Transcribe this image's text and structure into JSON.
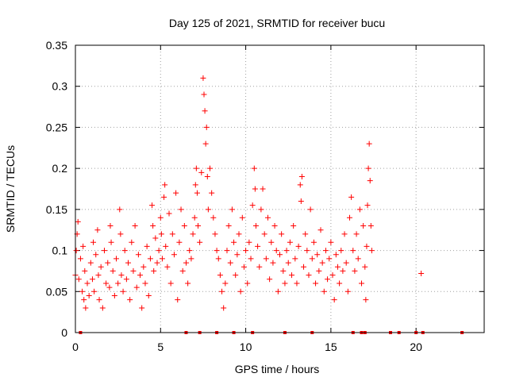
{
  "chart_data": {
    "type": "scatter",
    "title": "Day 125 of 2021, SRMTID for receiver bucu",
    "xlabel": "GPS time / hours",
    "ylabel": "SRMTID / TECUs",
    "xlim": [
      0,
      24
    ],
    "ylim": [
      0,
      0.35
    ],
    "xticks": [
      0,
      5,
      10,
      15,
      20
    ],
    "xtick_labels": [
      "0",
      "5",
      "10",
      "15",
      "20"
    ],
    "yticks": [
      0,
      0.05,
      0.1,
      0.15,
      0.2,
      0.25,
      0.3,
      0.35
    ],
    "ytick_labels": [
      "0",
      "0.05",
      "0.1",
      "0.15",
      "0.2",
      "0.25",
      "0.3",
      "0.35"
    ],
    "grid": true,
    "marker": "+",
    "color": "#ff0000",
    "series": [
      {
        "name": "SRMTID",
        "points": [
          [
            0.0,
            0.07
          ],
          [
            0.05,
            0.1
          ],
          [
            0.1,
            0.12
          ],
          [
            0.15,
            0.135
          ],
          [
            0.2,
            0.065
          ],
          [
            0.3,
            0.09
          ],
          [
            0.4,
            0.05
          ],
          [
            0.45,
            0.105
          ],
          [
            0.5,
            0.04
          ],
          [
            0.55,
            0.075
          ],
          [
            0.6,
            0.03
          ],
          [
            0.7,
            0.06
          ],
          [
            0.8,
            0.045
          ],
          [
            0.9,
            0.085
          ],
          [
            1.0,
            0.065
          ],
          [
            1.05,
            0.11
          ],
          [
            1.1,
            0.05
          ],
          [
            1.2,
            0.095
          ],
          [
            1.3,
            0.125
          ],
          [
            1.35,
            0.07
          ],
          [
            1.4,
            0.04
          ],
          [
            1.5,
            0.08
          ],
          [
            1.6,
            0.03
          ],
          [
            1.7,
            0.1
          ],
          [
            1.8,
            0.06
          ],
          [
            1.9,
            0.085
          ],
          [
            2.0,
            0.055
          ],
          [
            2.05,
            0.13
          ],
          [
            2.1,
            0.11
          ],
          [
            2.2,
            0.075
          ],
          [
            2.3,
            0.045
          ],
          [
            2.4,
            0.09
          ],
          [
            2.5,
            0.06
          ],
          [
            2.6,
            0.15
          ],
          [
            2.65,
            0.12
          ],
          [
            2.7,
            0.07
          ],
          [
            2.8,
            0.05
          ],
          [
            2.9,
            0.1
          ],
          [
            3.0,
            0.065
          ],
          [
            3.1,
            0.085
          ],
          [
            3.2,
            0.04
          ],
          [
            3.3,
            0.11
          ],
          [
            3.4,
            0.075
          ],
          [
            3.5,
            0.13
          ],
          [
            3.6,
            0.055
          ],
          [
            3.7,
            0.095
          ],
          [
            3.8,
            0.07
          ],
          [
            3.9,
            0.03
          ],
          [
            4.0,
            0.08
          ],
          [
            4.1,
            0.06
          ],
          [
            4.2,
            0.105
          ],
          [
            4.3,
            0.045
          ],
          [
            4.4,
            0.09
          ],
          [
            4.5,
            0.155
          ],
          [
            4.55,
            0.13
          ],
          [
            4.6,
            0.075
          ],
          [
            4.7,
            0.115
          ],
          [
            4.8,
            0.085
          ],
          [
            4.9,
            0.1
          ],
          [
            5.0,
            0.14
          ],
          [
            5.05,
            0.12
          ],
          [
            5.1,
            0.09
          ],
          [
            5.2,
            0.165
          ],
          [
            5.25,
            0.18
          ],
          [
            5.3,
            0.105
          ],
          [
            5.4,
            0.08
          ],
          [
            5.5,
            0.145
          ],
          [
            5.6,
            0.06
          ],
          [
            5.7,
            0.12
          ],
          [
            5.8,
            0.095
          ],
          [
            5.9,
            0.17
          ],
          [
            6.0,
            0.04
          ],
          [
            6.1,
            0.11
          ],
          [
            6.2,
            0.15
          ],
          [
            6.3,
            0.075
          ],
          [
            6.4,
            0.13
          ],
          [
            6.5,
            0.085
          ],
          [
            6.6,
            0.06
          ],
          [
            6.7,
            0.1
          ],
          [
            6.8,
            0.09
          ],
          [
            6.9,
            0.12
          ],
          [
            7.0,
            0.14
          ],
          [
            7.05,
            0.18
          ],
          [
            7.1,
            0.2
          ],
          [
            7.15,
            0.17
          ],
          [
            7.2,
            0.13
          ],
          [
            7.3,
            0.11
          ],
          [
            7.4,
            0.195
          ],
          [
            7.5,
            0.31
          ],
          [
            7.55,
            0.29
          ],
          [
            7.6,
            0.27
          ],
          [
            7.65,
            0.23
          ],
          [
            7.7,
            0.25
          ],
          [
            7.75,
            0.19
          ],
          [
            7.8,
            0.15
          ],
          [
            7.9,
            0.2
          ],
          [
            8.0,
            0.17
          ],
          [
            8.1,
            0.14
          ],
          [
            8.2,
            0.12
          ],
          [
            8.3,
            0.1
          ],
          [
            8.4,
            0.09
          ],
          [
            8.5,
            0.07
          ],
          [
            8.6,
            0.05
          ],
          [
            8.7,
            0.03
          ],
          [
            8.8,
            0.06
          ],
          [
            8.9,
            0.1
          ],
          [
            9.0,
            0.13
          ],
          [
            9.1,
            0.085
          ],
          [
            9.2,
            0.15
          ],
          [
            9.3,
            0.11
          ],
          [
            9.4,
            0.07
          ],
          [
            9.5,
            0.095
          ],
          [
            9.6,
            0.12
          ],
          [
            9.7,
            0.05
          ],
          [
            9.8,
            0.14
          ],
          [
            9.9,
            0.08
          ],
          [
            10.0,
            0.1
          ],
          [
            10.1,
            0.06
          ],
          [
            10.2,
            0.11
          ],
          [
            10.3,
            0.09
          ],
          [
            10.4,
            0.155
          ],
          [
            10.5,
            0.2
          ],
          [
            10.55,
            0.175
          ],
          [
            10.6,
            0.13
          ],
          [
            10.7,
            0.105
          ],
          [
            10.8,
            0.08
          ],
          [
            10.9,
            0.15
          ],
          [
            11.0,
            0.175
          ],
          [
            11.1,
            0.12
          ],
          [
            11.2,
            0.09
          ],
          [
            11.3,
            0.14
          ],
          [
            11.4,
            0.065
          ],
          [
            11.5,
            0.11
          ],
          [
            11.6,
            0.085
          ],
          [
            11.7,
            0.13
          ],
          [
            11.8,
            0.1
          ],
          [
            11.9,
            0.05
          ],
          [
            12.0,
            0.095
          ],
          [
            12.1,
            0.12
          ],
          [
            12.2,
            0.075
          ],
          [
            12.3,
            0.06
          ],
          [
            12.4,
            0.1
          ],
          [
            12.5,
            0.085
          ],
          [
            12.6,
            0.11
          ],
          [
            12.7,
            0.07
          ],
          [
            12.8,
            0.13
          ],
          [
            12.9,
            0.09
          ],
          [
            13.0,
            0.06
          ],
          [
            13.1,
            0.105
          ],
          [
            13.2,
            0.18
          ],
          [
            13.25,
            0.16
          ],
          [
            13.3,
            0.19
          ],
          [
            13.4,
            0.08
          ],
          [
            13.5,
            0.12
          ],
          [
            13.6,
            0.1
          ],
          [
            13.7,
            0.07
          ],
          [
            13.8,
            0.15
          ],
          [
            13.9,
            0.09
          ],
          [
            14.0,
            0.11
          ],
          [
            14.1,
            0.06
          ],
          [
            14.2,
            0.095
          ],
          [
            14.3,
            0.075
          ],
          [
            14.4,
            0.125
          ],
          [
            14.5,
            0.085
          ],
          [
            14.6,
            0.05
          ],
          [
            14.7,
            0.1
          ],
          [
            14.8,
            0.065
          ],
          [
            14.9,
            0.09
          ],
          [
            15.0,
            0.11
          ],
          [
            15.1,
            0.07
          ],
          [
            15.2,
            0.04
          ],
          [
            15.3,
            0.095
          ],
          [
            15.4,
            0.08
          ],
          [
            15.5,
            0.06
          ],
          [
            15.6,
            0.1
          ],
          [
            15.7,
            0.075
          ],
          [
            15.8,
            0.12
          ],
          [
            15.9,
            0.085
          ],
          [
            16.0,
            0.05
          ],
          [
            16.1,
            0.14
          ],
          [
            16.2,
            0.165
          ],
          [
            16.3,
            0.1
          ],
          [
            16.4,
            0.075
          ],
          [
            16.5,
            0.12
          ],
          [
            16.6,
            0.09
          ],
          [
            16.7,
            0.15
          ],
          [
            16.8,
            0.06
          ],
          [
            16.9,
            0.13
          ],
          [
            17.0,
            0.08
          ],
          [
            17.05,
            0.04
          ],
          [
            17.1,
            0.105
          ],
          [
            17.15,
            0.155
          ],
          [
            17.2,
            0.2
          ],
          [
            17.25,
            0.23
          ],
          [
            17.3,
            0.185
          ],
          [
            17.35,
            0.13
          ],
          [
            17.4,
            0.1
          ],
          [
            20.3,
            0.072
          ]
        ]
      }
    ],
    "baseline_markers_x": [
      0.3,
      6.5,
      7.3,
      8.3,
      9.3,
      10.4,
      12.3,
      13.9,
      16.3,
      16.8,
      17.0,
      18.5,
      19.0,
      20.0,
      20.4,
      22.7
    ]
  }
}
